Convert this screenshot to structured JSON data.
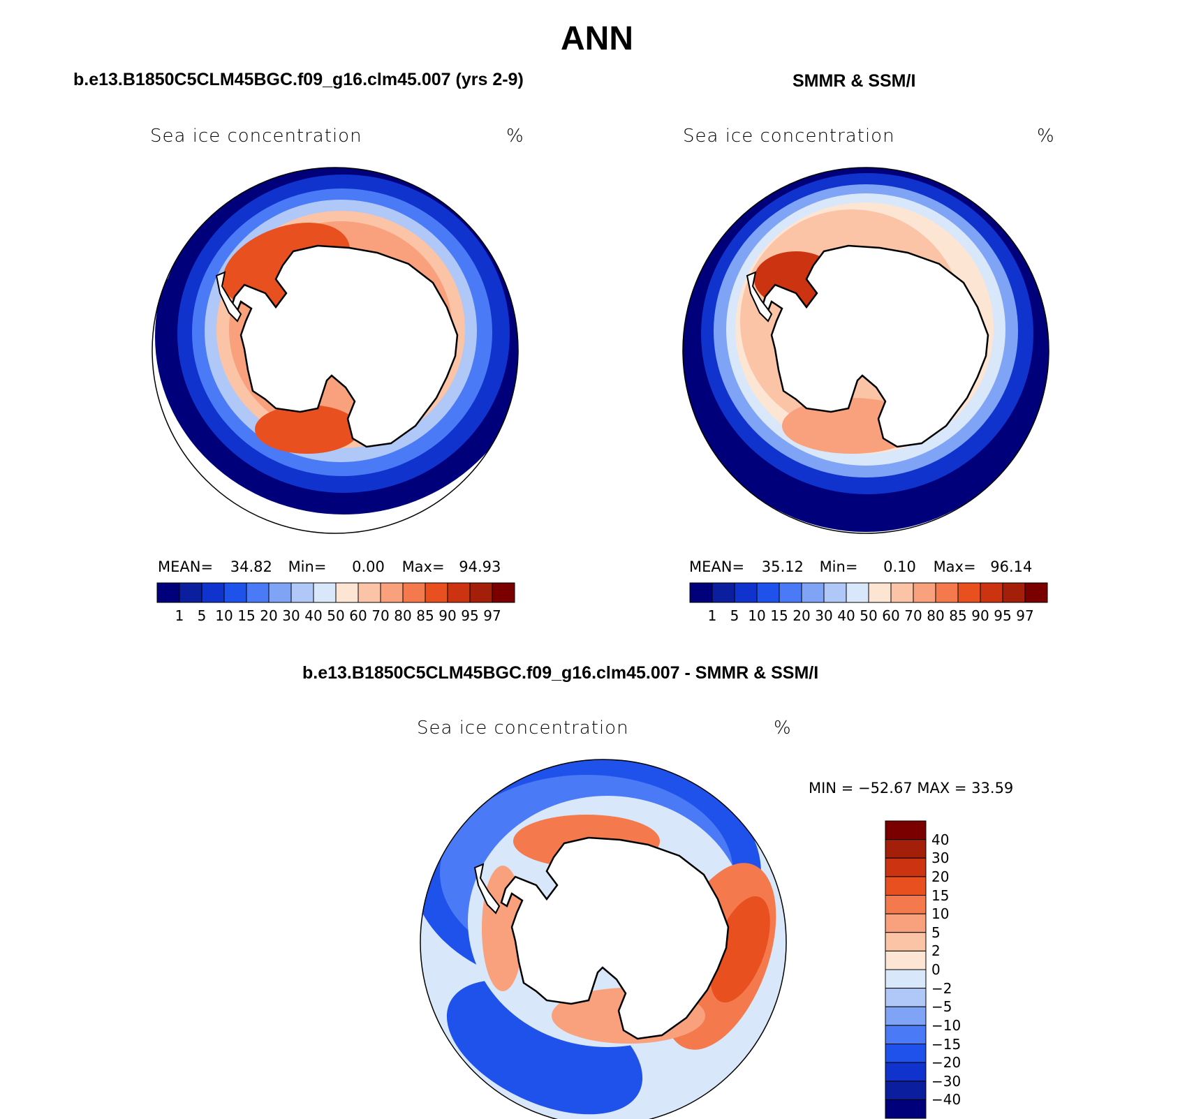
{
  "title": "ANN",
  "panels": [
    {
      "title": "b.e13.B1850C5CLM45BGC.f09_g16.clm45.007 (yrs 2-9)",
      "variable": "Sea ice concentration",
      "units": "%",
      "stats": {
        "mean_label": "MEAN=",
        "mean": "34.82",
        "min_label": "Min=",
        "min": "0.00",
        "max_label": "Max=",
        "max": "94.93"
      },
      "colorbar_labels": [
        "1",
        "5",
        "10",
        "15",
        "20",
        "30",
        "40",
        "50",
        "60",
        "70",
        "80",
        "85",
        "90",
        "95",
        "97"
      ]
    },
    {
      "title": "SMMR & SSM/I",
      "variable": "Sea ice concentration",
      "units": "%",
      "stats": {
        "mean_label": "MEAN=",
        "mean": "35.12",
        "min_label": "Min=",
        "min": "0.10",
        "max_label": "Max=",
        "max": "96.14"
      },
      "colorbar_labels": [
        "1",
        "5",
        "10",
        "15",
        "20",
        "30",
        "40",
        "50",
        "60",
        "70",
        "80",
        "85",
        "90",
        "95",
        "97"
      ]
    }
  ],
  "diff_panel": {
    "title": "b.e13.B1850C5CLM45BGC.f09_g16.clm45.007 - SMMR & SSM/I",
    "variable": "Sea ice concentration",
    "units": "%",
    "minmax": "MIN = −52.67  MAX =   33.59",
    "colorbar_labels": [
      "40",
      "30",
      "20",
      "15",
      "10",
      "5",
      "2",
      "0",
      "−2",
      "−5",
      "−10",
      "−15",
      "−20",
      "−30",
      "−40"
    ]
  },
  "colors": {
    "abs_scale": [
      "#00007a",
      "#0a1e9e",
      "#0f33cc",
      "#1f52eb",
      "#4a7af5",
      "#7fa3f5",
      "#b0c8f7",
      "#d9e7fa",
      "#fde5d4",
      "#fbc4a6",
      "#f8a17c",
      "#f47a4d",
      "#e9501f",
      "#cc3310",
      "#a31f0a",
      "#7a0000"
    ],
    "diff_scale": [
      "#7a0000",
      "#a31f0a",
      "#cc3310",
      "#e9501f",
      "#f47a4d",
      "#f8a17c",
      "#fbc4a6",
      "#fde5d4",
      "#d9e7fa",
      "#b0c8f7",
      "#7fa3f5",
      "#4a7af5",
      "#1f52eb",
      "#0f33cc",
      "#0a1e9e",
      "#00007a"
    ]
  }
}
